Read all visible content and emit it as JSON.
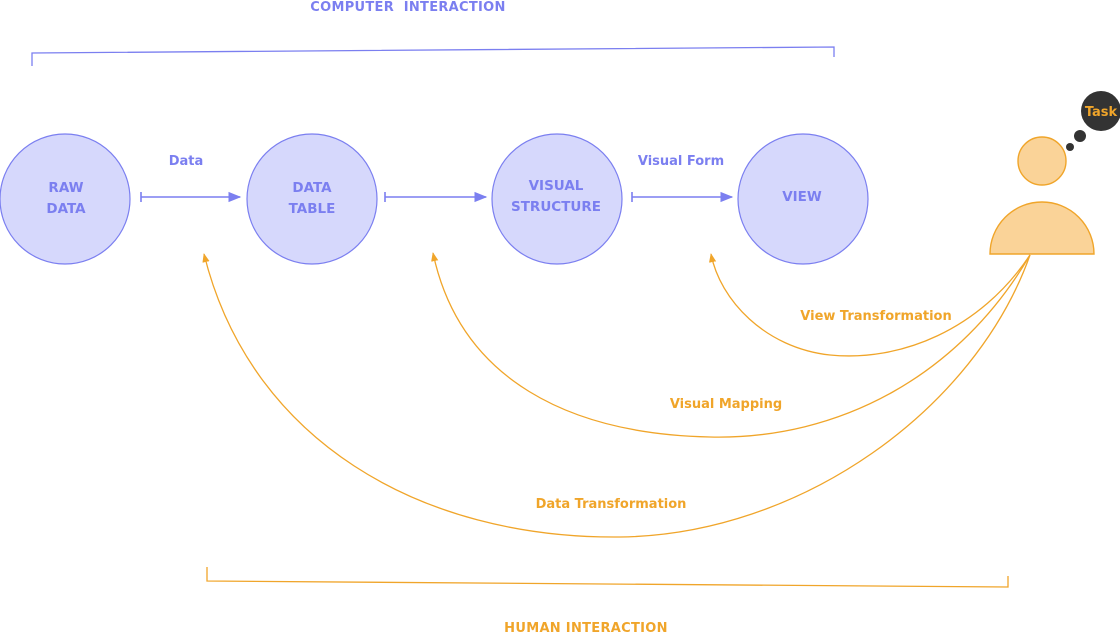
{
  "titles": {
    "top": "COMPUTER  INTERACTION",
    "bottom": "HUMAN INTERACTION"
  },
  "nodes": [
    {
      "line1": "RAW",
      "line2": "DATA"
    },
    {
      "line1": "DATA",
      "line2": "TABLE"
    },
    {
      "line1": "VISUAL",
      "line2": "STRUCTURE"
    },
    {
      "line1": "VIEW",
      "line2": ""
    }
  ],
  "edge_labels": {
    "data": "Data",
    "visual_form": "Visual Form"
  },
  "transformations": {
    "view": "View Transformation",
    "visual": "Visual Mapping",
    "data": "Data Transformation"
  },
  "user": {
    "task": "Task"
  },
  "colors": {
    "blue": "#7b7ff0",
    "node_fill": "#d6d8fc",
    "orange": "#f0a52a",
    "person_fill": "#fad398",
    "bubble": "#333333"
  }
}
